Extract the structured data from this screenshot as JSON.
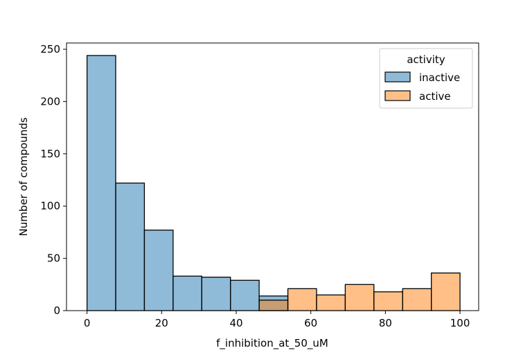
{
  "chart_data": {
    "type": "bar",
    "subtype": "histogram-overlay",
    "xlabel": "f_inhibition_at_50_uM",
    "ylabel": "Number of compounds",
    "xlim": [
      -5.5,
      105
    ],
    "ylim": [
      0,
      256
    ],
    "xticks": [
      0,
      20,
      40,
      60,
      80,
      100
    ],
    "yticks": [
      0,
      50,
      100,
      150,
      200,
      250
    ],
    "grid": false,
    "legend": {
      "title": "activity",
      "position": "top-right"
    },
    "series": [
      {
        "name": "inactive",
        "color": "#1f77b4",
        "bins": [
          {
            "x0": 0.0,
            "x1": 7.69,
            "count": 244
          },
          {
            "x0": 7.69,
            "x1": 15.38,
            "count": 122
          },
          {
            "x0": 15.38,
            "x1": 23.08,
            "count": 77
          },
          {
            "x0": 23.08,
            "x1": 30.77,
            "count": 33
          },
          {
            "x0": 30.77,
            "x1": 38.46,
            "count": 32
          },
          {
            "x0": 38.46,
            "x1": 46.15,
            "count": 29
          },
          {
            "x0": 46.15,
            "x1": 53.85,
            "count": 14
          }
        ]
      },
      {
        "name": "active",
        "color": "#ff7f0e",
        "bins": [
          {
            "x0": 46.15,
            "x1": 53.85,
            "count": 10
          },
          {
            "x0": 53.85,
            "x1": 61.54,
            "count": 21
          },
          {
            "x0": 61.54,
            "x1": 69.23,
            "count": 15
          },
          {
            "x0": 69.23,
            "x1": 76.92,
            "count": 25
          },
          {
            "x0": 76.92,
            "x1": 84.62,
            "count": 18
          },
          {
            "x0": 84.62,
            "x1": 92.31,
            "count": 21
          },
          {
            "x0": 92.31,
            "x1": 100.0,
            "count": 36
          }
        ]
      }
    ]
  }
}
